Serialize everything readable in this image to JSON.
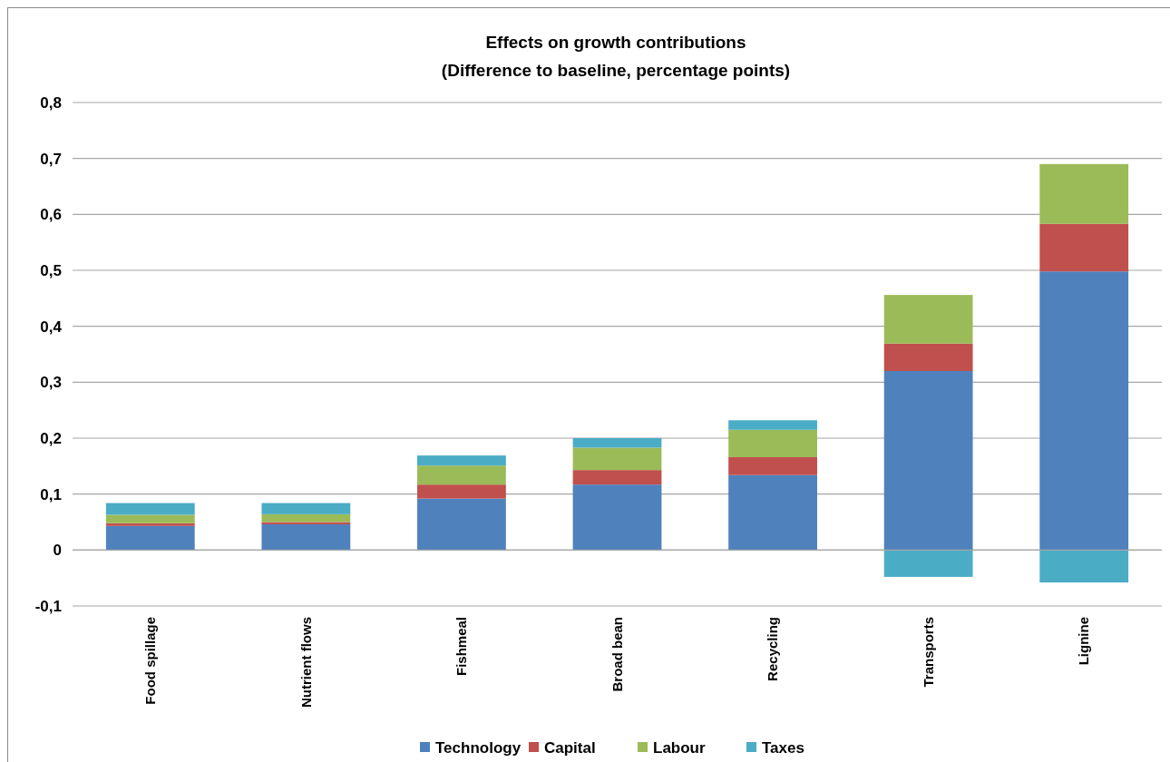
{
  "chart_data": {
    "type": "bar",
    "stacked": true,
    "title": "Effects on growth contributions",
    "subtitle": "(Difference to baseline, percentage points)",
    "categories": [
      "Food spillage",
      "Nutrient flows",
      "Fishmeal",
      "Broad bean",
      "Recycling",
      "Transports",
      "Lignine"
    ],
    "series": [
      {
        "name": "Technology",
        "color": "#4f81bd",
        "values": [
          0.043,
          0.046,
          0.092,
          0.117,
          0.134,
          0.32,
          0.498
        ]
      },
      {
        "name": "Capital",
        "color": "#c0504d",
        "values": [
          0.005,
          0.004,
          0.025,
          0.026,
          0.032,
          0.049,
          0.085
        ]
      },
      {
        "name": "Labour",
        "color": "#9bbb59",
        "values": [
          0.015,
          0.014,
          0.034,
          0.04,
          0.049,
          0.087,
          0.107
        ]
      },
      {
        "name": "Taxes",
        "color": "#4bacc6",
        "values": [
          0.021,
          0.02,
          0.018,
          0.017,
          0.017,
          -0.048,
          -0.058
        ]
      }
    ],
    "ylim": [
      -0.1,
      0.8
    ],
    "yticks": [
      {
        "value": -0.1,
        "label": "-0,1"
      },
      {
        "value": 0,
        "label": "0"
      },
      {
        "value": 0.1,
        "label": "0,1"
      },
      {
        "value": 0.2,
        "label": "0,2"
      },
      {
        "value": 0.3,
        "label": "0,3"
      },
      {
        "value": 0.4,
        "label": "0,4"
      },
      {
        "value": 0.5,
        "label": "0,5"
      },
      {
        "value": 0.6,
        "label": "0,6"
      },
      {
        "value": 0.7,
        "label": "0,7"
      },
      {
        "value": 0.8,
        "label": "0,8"
      }
    ],
    "grid": "y",
    "legend": "bottom"
  }
}
